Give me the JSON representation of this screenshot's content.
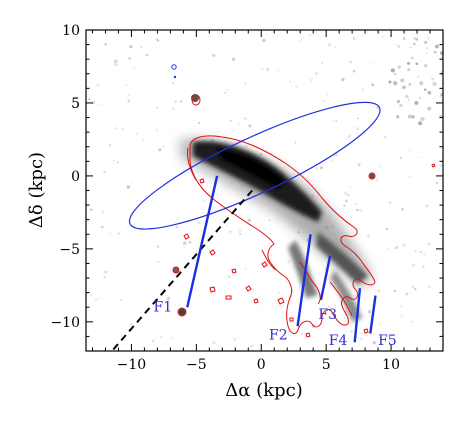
{
  "chart_data": {
    "type": "scatter",
    "title": "",
    "xlabel": "Δα (kpc)",
    "ylabel": "Δδ (kpc)",
    "xlim": [
      -13.5,
      14
    ],
    "ylim": [
      -12,
      10
    ],
    "x_ticks": [
      -10,
      -5,
      0,
      5,
      10
    ],
    "y_ticks": [
      -10,
      -5,
      0,
      5,
      10
    ],
    "x_tick_labels": [
      "−10",
      "−5",
      "0",
      "5",
      "10"
    ],
    "y_tick_labels": [
      "−10",
      "−5",
      "0",
      "5",
      "10"
    ],
    "grid": false,
    "legend": "none",
    "colors": {
      "galaxy_image": "#1a1a1a",
      "contour": "#e01010",
      "ellipse": "#2030e0",
      "filament": "#1a2fe0",
      "filament_label": "#2f2fd0",
      "dashed_line": "#000000"
    },
    "ellipse": {
      "center": [
        -0.5,
        0.7
      ],
      "semi_major": 10.6,
      "semi_minor": 1.9,
      "angle_deg": -25
    },
    "dashed_line": {
      "start": [
        -0.7,
        -1.0
      ],
      "end": [
        -11.5,
        -12
      ]
    },
    "filaments": [
      {
        "label": "F1",
        "start": [
          -3.4,
          0.0
        ],
        "end": [
          -5.7,
          -9.0
        ],
        "label_pos": [
          -8.3,
          -9.3
        ]
      },
      {
        "label": "F2",
        "start": [
          3.8,
          -4.0
        ],
        "end": [
          2.8,
          -10.3
        ],
        "label_pos": [
          0.6,
          -11.2
        ]
      },
      {
        "label": "F3",
        "start": [
          5.3,
          -5.5
        ],
        "end": [
          4.6,
          -8.5
        ],
        "label_pos": [
          4.4,
          -9.8
        ]
      },
      {
        "label": "F4",
        "start": [
          7.6,
          -7.7
        ],
        "end": [
          7.2,
          -11.4
        ],
        "label_pos": [
          5.2,
          -11.6
        ]
      },
      {
        "label": "F5",
        "start": [
          8.8,
          -8.2
        ],
        "end": [
          8.4,
          -10.8
        ],
        "label_pos": [
          9.0,
          -11.6
        ]
      }
    ]
  }
}
